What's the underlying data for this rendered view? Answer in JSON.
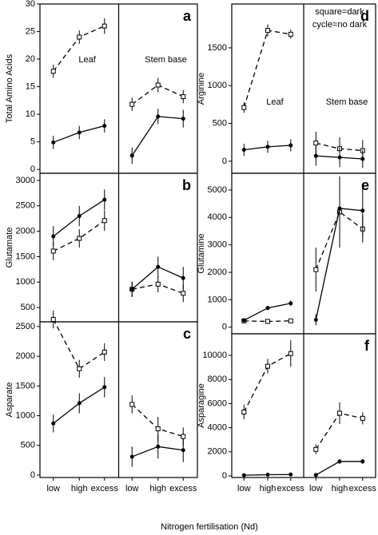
{
  "x_label": "Nitrogen fertilisation (Nd)",
  "chart_data": [
    {
      "type": "line",
      "panel": "a",
      "y_label": "Total Amino Acids",
      "groups": [
        "Leaf",
        "Stem base"
      ],
      "ylim": [
        -0.7,
        30
      ],
      "yticks": [
        0,
        5,
        10,
        15,
        20,
        25,
        30
      ],
      "series": [
        {
          "marker": "square",
          "dashed": true,
          "color": "#000000",
          "values": [
            17.8,
            24,
            26,
            11.8,
            15.3,
            13.2
          ],
          "errors": [
            1.2,
            1.2,
            1.4,
            1.2,
            1.3,
            1.2
          ]
        },
        {
          "marker": "circle",
          "dashed": false,
          "color": "#000000",
          "values": [
            4.9,
            6.7,
            7.9,
            2.5,
            9.6,
            9.2
          ],
          "errors": [
            1.2,
            1.2,
            1.2,
            1.5,
            1.4,
            1.6
          ]
        }
      ]
    },
    {
      "type": "line",
      "panel": "b",
      "y_label": "Glutamate",
      "ylim": [
        220,
        3140
      ],
      "yticks": [
        500,
        1000,
        1500,
        2000,
        2500,
        3000
      ],
      "series": [
        {
          "marker": "square",
          "dashed": true,
          "color": "#000000",
          "values": [
            1610,
            1860,
            2210,
            860,
            960,
            780
          ],
          "errors": [
            180,
            180,
            200,
            150,
            160,
            170
          ]
        },
        {
          "marker": "circle",
          "dashed": false,
          "color": "#000000",
          "values": [
            1900,
            2300,
            2620,
            860,
            1300,
            1080
          ],
          "errors": [
            200,
            200,
            200,
            150,
            200,
            220
          ]
        }
      ]
    },
    {
      "type": "line",
      "panel": "c",
      "y_label": "Asparate",
      "categories": [
        "low",
        "high",
        "excess",
        "low",
        "high",
        "excess"
      ],
      "ylim": [
        -40,
        2580
      ],
      "yticks": [
        0,
        500,
        1000,
        1500,
        2000,
        2500
      ],
      "series": [
        {
          "marker": "square",
          "dashed": true,
          "color": "#000000",
          "values": [
            2620,
            1790,
            2070,
            1190,
            780,
            650
          ],
          "errors": [
            150,
            150,
            150,
            150,
            200,
            150
          ]
        },
        {
          "marker": "circle",
          "dashed": false,
          "color": "#000000",
          "values": [
            870,
            1210,
            1480,
            310,
            480,
            420
          ],
          "errors": [
            150,
            170,
            170,
            170,
            200,
            200
          ]
        }
      ]
    },
    {
      "type": "line",
      "panel": "d",
      "y_label": "Arginine",
      "groups": [
        "Leaf",
        "Stem base"
      ],
      "legend": [
        "square=dark",
        "cycle=no dark"
      ],
      "ylim": [
        -160,
        2080
      ],
      "yticks": [
        0,
        500,
        1000,
        1500
      ],
      "series": [
        {
          "marker": "square",
          "dashed": true,
          "color": "#000000",
          "values": [
            710,
            1730,
            1680,
            240,
            165,
            140
          ],
          "errors": [
            70,
            80,
            60,
            150,
            150,
            140
          ]
        },
        {
          "marker": "circle",
          "dashed": false,
          "color": "#000000",
          "values": [
            150,
            190,
            210,
            70,
            50,
            30
          ],
          "errors": [
            80,
            80,
            80,
            130,
            130,
            120
          ]
        }
      ]
    },
    {
      "type": "line",
      "panel": "e",
      "y_label": "Glutamine",
      "ylim": [
        -240,
        5610
      ],
      "yticks": [
        0,
        1000,
        2000,
        3000,
        4000,
        5000
      ],
      "series": [
        {
          "marker": "square",
          "dashed": true,
          "color": "#000000",
          "values": [
            230,
            210,
            230,
            2100,
            4200,
            3580
          ],
          "errors": [
            40,
            40,
            40,
            800,
            1300,
            500
          ]
        },
        {
          "marker": "circle",
          "dashed": false,
          "color": "#000000",
          "values": [
            250,
            700,
            870,
            270,
            4330,
            4250
          ],
          "errors": [
            60,
            80,
            100,
            200,
            800,
            900
          ]
        }
      ]
    },
    {
      "type": "line",
      "panel": "f",
      "y_label": "Asparagine",
      "categories": [
        "low",
        "high",
        "excess",
        "low",
        "high",
        "excess"
      ],
      "ylim": [
        -130,
        11790
      ],
      "yticks": [
        0,
        2000,
        4000,
        6000,
        8000,
        10000
      ],
      "series": [
        {
          "marker": "square",
          "dashed": true,
          "color": "#000000",
          "values": [
            5300,
            9100,
            10150,
            2200,
            5200,
            4780
          ],
          "errors": [
            600,
            600,
            1100,
            400,
            900,
            500
          ]
        },
        {
          "marker": "circle",
          "dashed": false,
          "color": "#000000",
          "values": [
            60,
            100,
            120,
            80,
            1200,
            1200
          ],
          "errors": [
            60,
            60,
            60,
            100,
            200,
            200
          ]
        }
      ]
    }
  ]
}
